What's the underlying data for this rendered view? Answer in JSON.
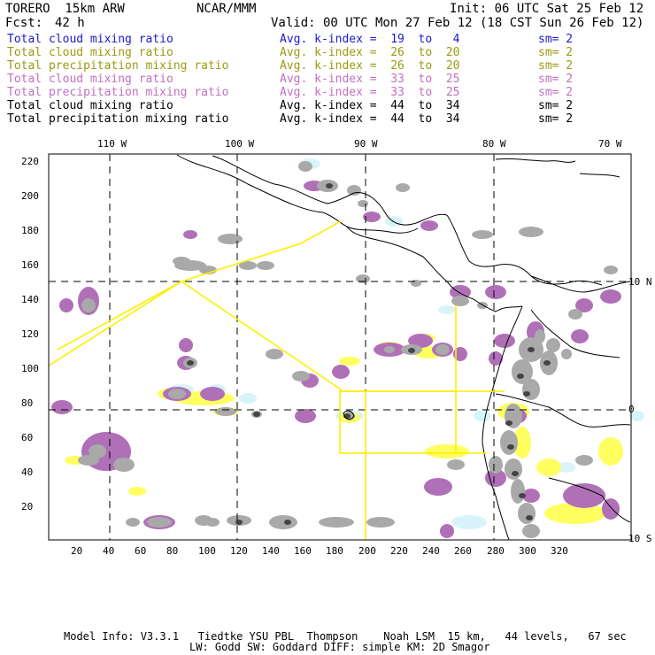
{
  "header": {
    "model": "TORERO  15km ARW",
    "org": "NCAR/MMM",
    "init": "Init: 06 UTC Sat 25 Feb 12",
    "fcst_label": "Fcst:",
    "fcst_value": "42 h",
    "valid": "Valid: 00 UTC Mon 27 Feb 12 (18 CST Sun 26 Feb 12)"
  },
  "legend": [
    {
      "field": "Total cloud mixing ratio",
      "kindex": "Avg. k-index =  19  to   4",
      "sm": "sm= 2",
      "color": "#1a1acc"
    },
    {
      "field": "Total cloud mixing ratio",
      "kindex": "Avg. k-index =  26  to  20",
      "sm": "sm= 2",
      "color": "#9a9a10"
    },
    {
      "field": "Total precipitation mixing ratio",
      "kindex": "Avg. k-index =  26  to  20",
      "sm": "sm= 2",
      "color": "#9a9a10"
    },
    {
      "field": "Total cloud mixing ratio",
      "kindex": "Avg. k-index =  33  to  25",
      "sm": "sm= 2",
      "color": "#c070c0"
    },
    {
      "field": "Total precipitation mixing ratio",
      "kindex": "Avg. k-index =  33  to  25",
      "sm": "sm= 2",
      "color": "#c070c0"
    },
    {
      "field": "Total cloud mixing ratio",
      "kindex": "Avg. k-index =  44  to  34",
      "sm": "sm= 2",
      "color": "#000000"
    },
    {
      "field": "Total precipitation mixing ratio",
      "kindex": "Avg. k-index =  44  to  34",
      "sm": "sm= 2",
      "color": "#000000"
    }
  ],
  "map": {
    "lon_labels": [
      "110 W",
      "100 W",
      "90 W",
      "80 W",
      "70 W"
    ],
    "lat_labels": [
      "10 N",
      "0",
      "10 S"
    ],
    "x_ticks": [
      "20",
      "40",
      "60",
      "80",
      "100",
      "120",
      "140",
      "160",
      "180",
      "200",
      "220",
      "240",
      "260",
      "280",
      "300",
      "320"
    ],
    "y_ticks": [
      "220",
      "200",
      "180",
      "160",
      "140",
      "120",
      "100",
      "80",
      "60",
      "40",
      "20"
    ],
    "colors": {
      "gray": "#a9a9a9",
      "purple": "#b070b8",
      "yellow": "#ffff60",
      "cyan": "#d8f4fa",
      "domain": "#ffee00",
      "coast": "#000000"
    }
  },
  "footer": {
    "line1": "Model Info: V3.3.1   Tiedtke YSU PBL  Thompson    Noah LSM  15 km,   44 levels,   67 sec",
    "line2": "LW: Godd SW: Goddard DIFF: simple KM: 2D Smagor"
  }
}
